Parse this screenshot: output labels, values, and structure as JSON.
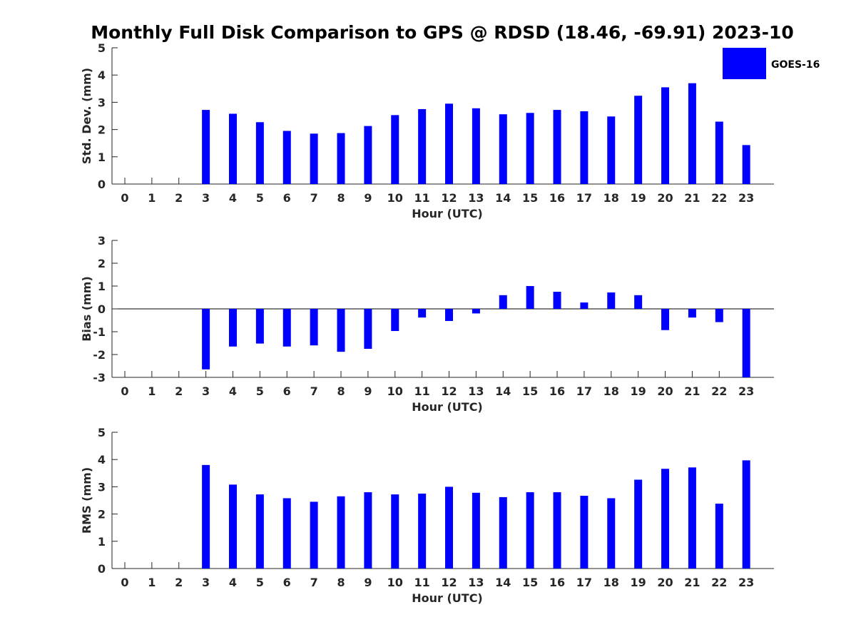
{
  "figure": {
    "title": "Monthly Full Disk Comparison to GPS @ RDSD (18.46, -69.91) 2023-10",
    "bar_color": "#0000ff",
    "legend": {
      "label": "GOES-16",
      "placement": "top-right"
    }
  },
  "chart_data": [
    {
      "type": "bar",
      "series": [
        {
          "name": "GOES-16",
          "color": "#0000ff"
        }
      ],
      "categories": [
        "0",
        "1",
        "2",
        "3",
        "4",
        "5",
        "6",
        "7",
        "8",
        "9",
        "10",
        "11",
        "12",
        "13",
        "14",
        "15",
        "16",
        "17",
        "18",
        "19",
        "20",
        "21",
        "22",
        "23"
      ],
      "values": [
        null,
        null,
        null,
        2.72,
        2.58,
        2.27,
        1.95,
        1.85,
        1.87,
        2.13,
        2.53,
        2.75,
        2.95,
        2.78,
        2.56,
        2.61,
        2.72,
        2.67,
        2.48,
        3.24,
        3.55,
        3.7,
        2.29,
        1.43
      ],
      "xlabel": "Hour (UTC)",
      "ylabel": "Std. Dev. (mm)",
      "ylim": [
        0,
        5
      ],
      "yticks": [
        0,
        1,
        2,
        3,
        4,
        5
      ],
      "grid": false
    },
    {
      "type": "bar",
      "series": [
        {
          "name": "GOES-16",
          "color": "#0000ff"
        }
      ],
      "categories": [
        "0",
        "1",
        "2",
        "3",
        "4",
        "5",
        "6",
        "7",
        "8",
        "9",
        "10",
        "11",
        "12",
        "13",
        "14",
        "15",
        "16",
        "17",
        "18",
        "19",
        "20",
        "21",
        "22",
        "23"
      ],
      "values": [
        null,
        null,
        null,
        -2.65,
        -1.65,
        -1.52,
        -1.65,
        -1.6,
        -1.88,
        -1.75,
        -0.97,
        -0.38,
        -0.53,
        -0.2,
        0.6,
        1.0,
        0.75,
        0.28,
        0.72,
        0.6,
        -0.93,
        -0.38,
        -0.58,
        -3.0
      ],
      "xlabel": "Hour (UTC)",
      "ylabel": "Bias (mm)",
      "ylim": [
        -3,
        3
      ],
      "yticks": [
        -3,
        -2,
        -1,
        0,
        1,
        2,
        3
      ],
      "grid": false
    },
    {
      "type": "bar",
      "series": [
        {
          "name": "GOES-16",
          "color": "#0000ff"
        }
      ],
      "categories": [
        "0",
        "1",
        "2",
        "3",
        "4",
        "5",
        "6",
        "7",
        "8",
        "9",
        "10",
        "11",
        "12",
        "13",
        "14",
        "15",
        "16",
        "17",
        "18",
        "19",
        "20",
        "21",
        "22",
        "23"
      ],
      "values": [
        null,
        null,
        null,
        3.8,
        3.08,
        2.72,
        2.58,
        2.45,
        2.65,
        2.8,
        2.72,
        2.75,
        3.0,
        2.78,
        2.62,
        2.8,
        2.8,
        2.67,
        2.58,
        3.26,
        3.66,
        3.71,
        2.38,
        3.97
      ],
      "xlabel": "Hour (UTC)",
      "ylabel": "RMS (mm)",
      "ylim": [
        0,
        5
      ],
      "yticks": [
        0,
        1,
        2,
        3,
        4,
        5
      ],
      "grid": false
    }
  ]
}
